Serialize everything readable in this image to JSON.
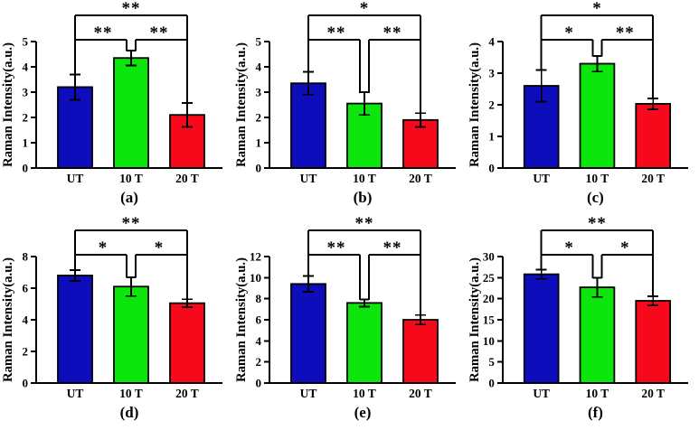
{
  "style": {
    "bar_colors": [
      "#0d0dbb",
      "#0ce60c",
      "#f6091b"
    ],
    "axis_color": "#000000",
    "background": "#ffffff"
  },
  "chart_data": [
    {
      "type": "bar",
      "caption": "(a)",
      "ylabel": "Raman Intensity(a.u.)",
      "categories": [
        "UT",
        "10 T",
        "20 T"
      ],
      "values": [
        3.2,
        4.35,
        2.1
      ],
      "errors": [
        0.5,
        0.3,
        0.47
      ],
      "ylim": [
        0,
        5
      ],
      "yticks": [
        0,
        1,
        2,
        3,
        4,
        5
      ],
      "significance": {
        "left": "**",
        "right": "**",
        "outer": "**"
      },
      "grid": false,
      "legend": false
    },
    {
      "type": "bar",
      "caption": "(b)",
      "ylabel": "Raman Intensity(a.u.)",
      "categories": [
        "UT",
        "10 T",
        "20 T"
      ],
      "values": [
        3.35,
        2.55,
        1.9
      ],
      "errors": [
        0.45,
        0.45,
        0.27
      ],
      "ylim": [
        0,
        5
      ],
      "yticks": [
        0,
        1,
        2,
        3,
        4,
        5
      ],
      "significance": {
        "left": "**",
        "right": "**",
        "outer": "*"
      },
      "grid": false,
      "legend": false
    },
    {
      "type": "bar",
      "caption": "(c)",
      "ylabel": "Raman Intensity(a.u.)",
      "categories": [
        "UT",
        "10 T",
        "20 T"
      ],
      "values": [
        2.6,
        3.3,
        2.03
      ],
      "errors": [
        0.5,
        0.25,
        0.17
      ],
      "ylim": [
        0,
        4
      ],
      "yticks": [
        0,
        1,
        2,
        3,
        4
      ],
      "significance": {
        "left": "*",
        "right": "**",
        "outer": "*"
      },
      "grid": false,
      "legend": false
    },
    {
      "type": "bar",
      "caption": "(d)",
      "ylabel": "Raman Intensity(a.u.)",
      "categories": [
        "UT",
        "10 T",
        "20 T"
      ],
      "values": [
        6.8,
        6.1,
        5.05
      ],
      "errors": [
        0.35,
        0.6,
        0.25
      ],
      "ylim": [
        0,
        8
      ],
      "yticks": [
        0,
        2,
        4,
        6,
        8
      ],
      "significance": {
        "left": "*",
        "right": "*",
        "outer": "**"
      },
      "grid": false,
      "legend": false
    },
    {
      "type": "bar",
      "caption": "(e)",
      "ylabel": "Raman Intensity(a.u.)",
      "categories": [
        "UT",
        "10 T",
        "20 T"
      ],
      "values": [
        9.4,
        7.6,
        6.0
      ],
      "errors": [
        0.75,
        0.35,
        0.45
      ],
      "ylim": [
        0,
        12
      ],
      "yticks": [
        0,
        2,
        4,
        6,
        8,
        10,
        12
      ],
      "significance": {
        "left": "**",
        "right": "**",
        "outer": "**"
      },
      "grid": false,
      "legend": false
    },
    {
      "type": "bar",
      "caption": "(f)",
      "ylabel": "Raman Intensity(a.u.)",
      "categories": [
        "UT",
        "10 T",
        "20 T"
      ],
      "values": [
        25.8,
        22.7,
        19.5
      ],
      "errors": [
        1.1,
        2.3,
        1.1
      ],
      "ylim": [
        0,
        30
      ],
      "yticks": [
        0,
        5,
        10,
        15,
        20,
        25,
        30
      ],
      "significance": {
        "left": "*",
        "right": "*",
        "outer": "**"
      },
      "grid": false,
      "legend": false
    }
  ]
}
